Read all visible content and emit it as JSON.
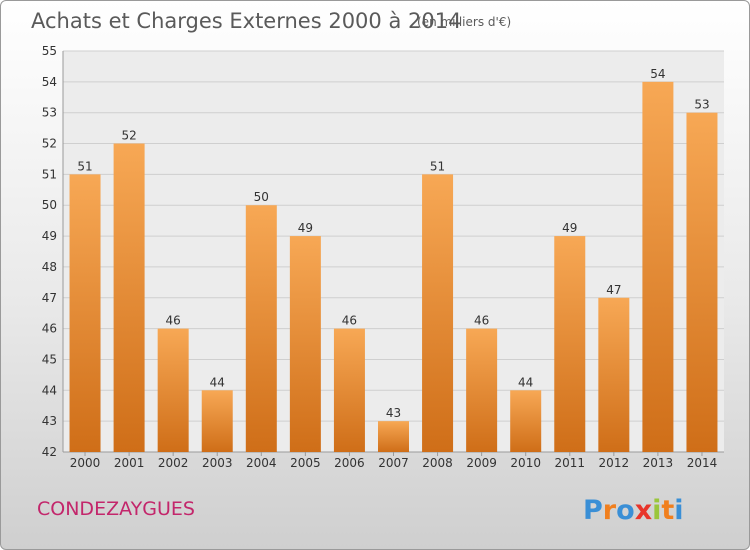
{
  "chart_data": {
    "type": "bar",
    "title": "Achats et Charges Externes 2000 à 2014",
    "unit_note": "(en milliers d'€)",
    "categories": [
      "2000",
      "2001",
      "2002",
      "2003",
      "2004",
      "2005",
      "2006",
      "2007",
      "2008",
      "2009",
      "2010",
      "2011",
      "2012",
      "2013",
      "2014"
    ],
    "values": [
      51,
      52,
      46,
      44,
      50,
      49,
      46,
      43,
      51,
      46,
      44,
      49,
      47,
      54,
      53
    ],
    "ylim": [
      42,
      55
    ],
    "yticks": [
      42,
      43,
      44,
      45,
      46,
      47,
      48,
      49,
      50,
      51,
      52,
      53,
      54,
      55
    ],
    "grid": true,
    "bar_color": "#f0a050"
  },
  "footer": {
    "town": "CONDEZAYGUES",
    "logo_text": "Proxiti",
    "logo_colors": [
      "#3a8fd6",
      "#f07f1e",
      "#3a8fd6",
      "#e8352b",
      "#9ac63c",
      "#f07f1e",
      "#3a8fd6"
    ]
  }
}
